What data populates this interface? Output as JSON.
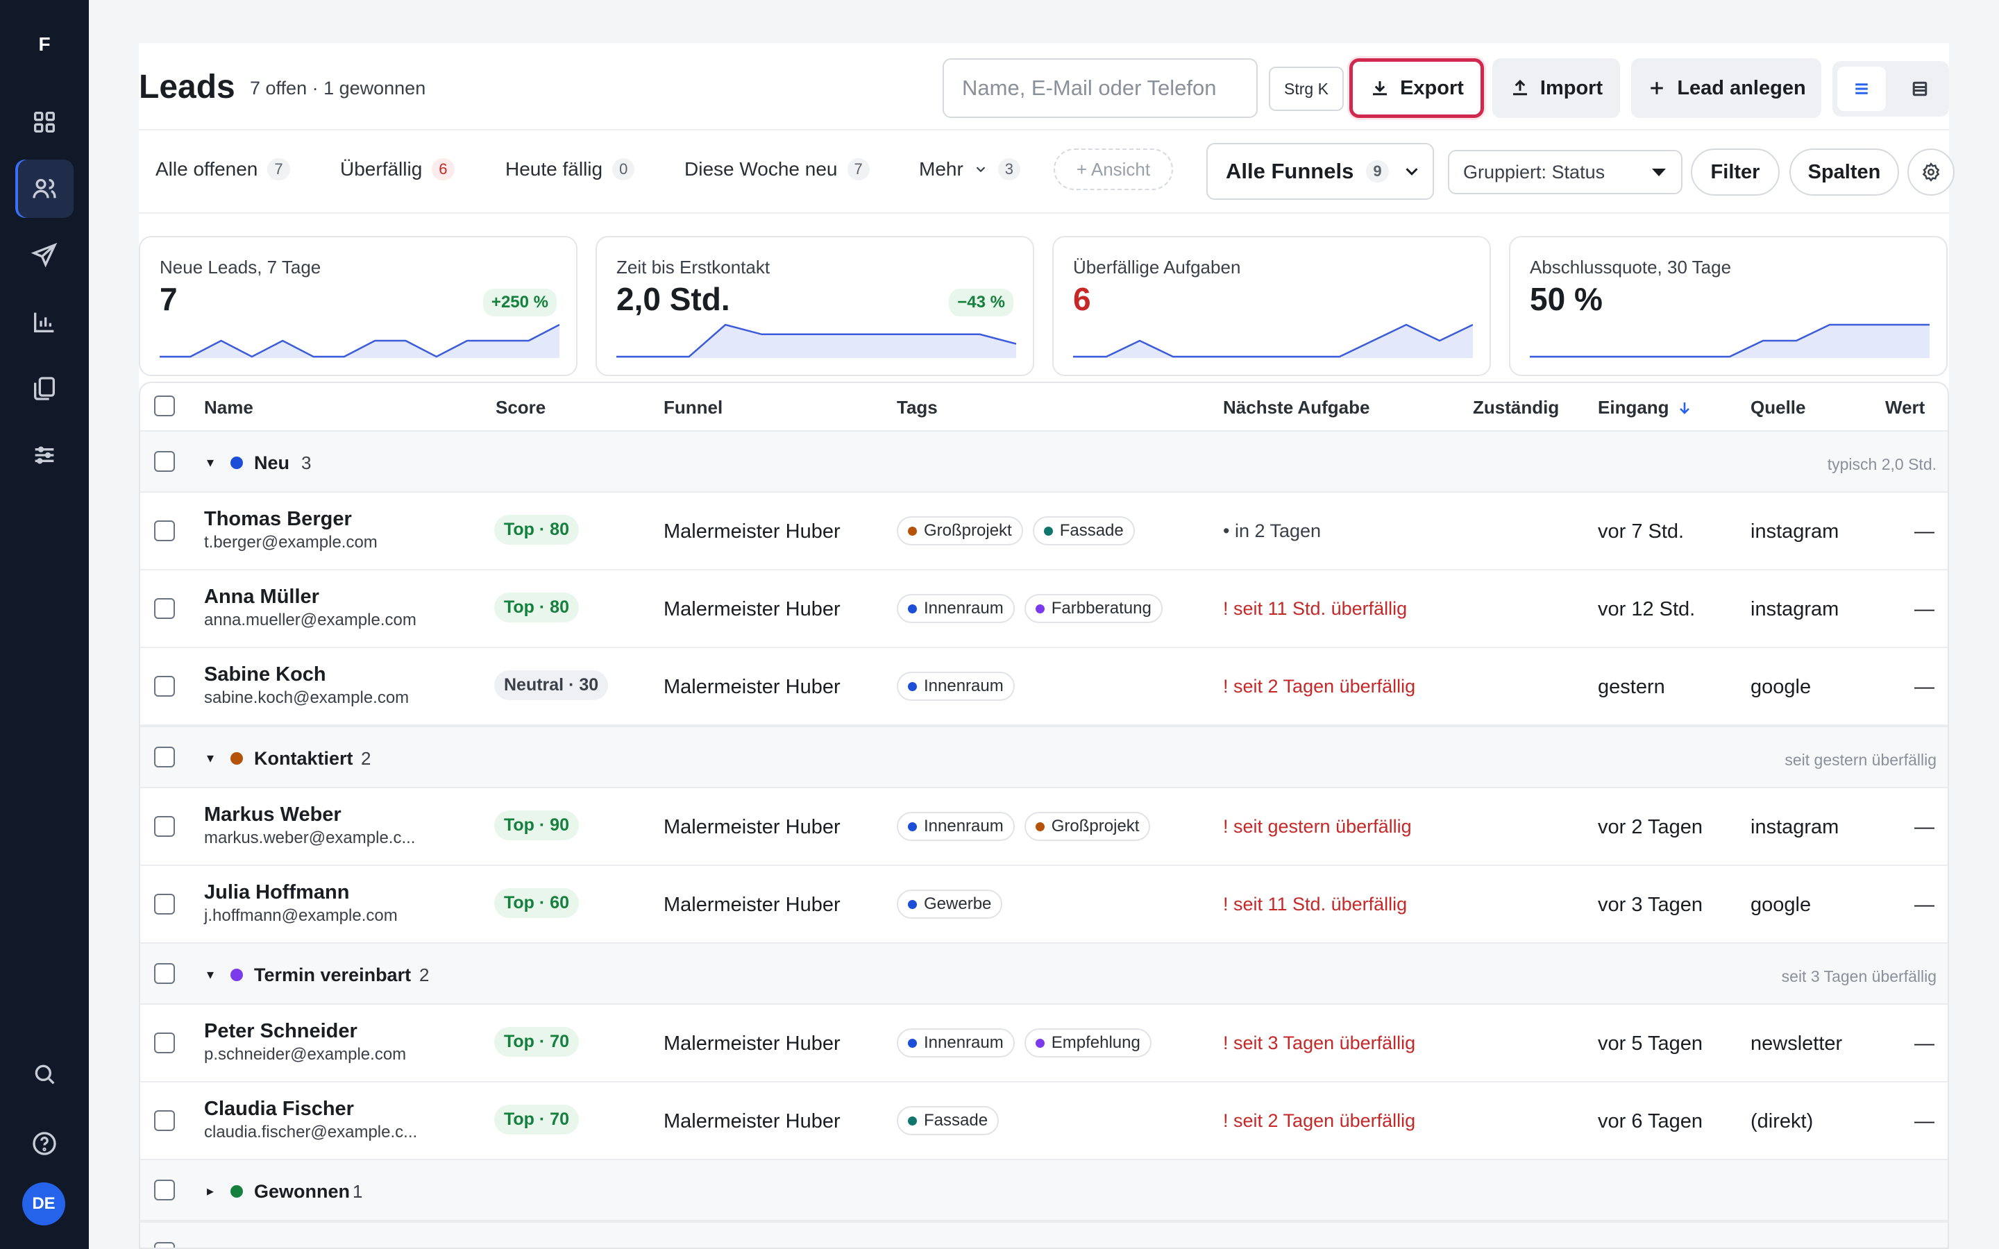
{
  "app": {
    "logo": "F",
    "avatar": "DE"
  },
  "header": {
    "title": "Leads",
    "subtitle": "7 offen · 1 gewonnen",
    "search_placeholder": "Name, E-Mail oder Telefon",
    "shortcut": "Strg K",
    "export": "Export",
    "import": "Import",
    "create": "Lead anlegen"
  },
  "tabs": [
    {
      "label": "Alle offenen",
      "count": "7"
    },
    {
      "label": "Überfällig",
      "count": "6"
    },
    {
      "label": "Heute fällig",
      "count": "0"
    },
    {
      "label": "Diese Woche neu",
      "count": "7"
    },
    {
      "label": "Mehr",
      "count": "3"
    }
  ],
  "toolbar": {
    "add_view": "+ Ansicht",
    "funnels": "Alle Funnels",
    "funnels_count": "9",
    "group": "Gruppiert: Status",
    "filter": "Filter",
    "columns": "Spalten"
  },
  "kpis": [
    {
      "label": "Neue Leads, 7 Tage",
      "value": "7",
      "delta": "+250 %",
      "spark": [
        0,
        0,
        1,
        0,
        1,
        0,
        0,
        1,
        1,
        0,
        1,
        1,
        1,
        2
      ]
    },
    {
      "label": "Zeit bis Erstkontakt",
      "value": "2,0 Std.",
      "delta": "−43 %",
      "spark": [
        0,
        0,
        0,
        1,
        0.7,
        0.7,
        0.7,
        0.7,
        0.7,
        0.7,
        0.7,
        0.4
      ]
    },
    {
      "label": "Überfällige Aufgaben",
      "value": "6",
      "delta": "",
      "spark": [
        0,
        0,
        1,
        0,
        0,
        0,
        0,
        0,
        0,
        1,
        2,
        1,
        2
      ]
    },
    {
      "label": "Abschlussquote, 30 Tage",
      "value": "50 %",
      "delta": "",
      "spark": [
        0,
        0,
        0,
        0,
        0,
        0,
        0,
        1,
        1,
        2,
        2,
        2,
        2
      ]
    }
  ],
  "columns": {
    "name": "Name",
    "score": "Score",
    "funnel": "Funnel",
    "tags": "Tags",
    "task": "Nächste Aufgabe",
    "owner": "Zuständig",
    "eingang": "Eingang",
    "source": "Quelle",
    "value": "Wert"
  },
  "groups": [
    {
      "label": "Neu",
      "count": "3",
      "hint": "typisch 2,0 Std.",
      "color": "#1d4ed8"
    },
    {
      "label": "Kontaktiert",
      "count": "2",
      "hint": "seit gestern überfällig",
      "color": "#b45309"
    },
    {
      "label": "Termin vereinbart",
      "count": "2",
      "hint": "seit 3 Tagen überfällig",
      "color": "#7c3aed"
    },
    {
      "label": "Gewonnen",
      "count": "1",
      "hint": "",
      "color": "#15803d"
    }
  ],
  "rows": [
    {
      "name": "Thomas Berger",
      "email": "t.berger@example.com",
      "score": "Top · 80",
      "funnel": "Malermeister Huber",
      "tags": [
        {
          "t": "Großprojekt",
          "c": "#b45309"
        },
        {
          "t": "Fassade",
          "c": "#0f766e"
        }
      ],
      "task": "• in 2 Tagen",
      "overdue": false,
      "eingang": "vor 7 Std.",
      "source": "instagram",
      "value": "—"
    },
    {
      "name": "Anna Müller",
      "email": "anna.mueller@example.com",
      "score": "Top · 80",
      "funnel": "Malermeister Huber",
      "tags": [
        {
          "t": "Innenraum",
          "c": "#1d4ed8"
        },
        {
          "t": "Farbberatung",
          "c": "#7c3aed"
        }
      ],
      "task": "! seit 11 Std. überfällig",
      "overdue": true,
      "eingang": "vor 12 Std.",
      "source": "instagram",
      "value": "—"
    },
    {
      "name": "Sabine Koch",
      "email": "sabine.koch@example.com",
      "score": "Neutral · 30",
      "funnel": "Malermeister Huber",
      "tags": [
        {
          "t": "Innenraum",
          "c": "#1d4ed8"
        }
      ],
      "task": "! seit 2 Tagen überfällig",
      "overdue": true,
      "eingang": "gestern",
      "source": "google",
      "value": "—"
    },
    {
      "name": "Markus Weber",
      "email": "markus.weber@example.c...",
      "score": "Top · 90",
      "funnel": "Malermeister Huber",
      "tags": [
        {
          "t": "Innenraum",
          "c": "#1d4ed8"
        },
        {
          "t": "Großprojekt",
          "c": "#b45309"
        }
      ],
      "task": "! seit gestern überfällig",
      "overdue": true,
      "eingang": "vor 2 Tagen",
      "source": "instagram",
      "value": "—"
    },
    {
      "name": "Julia Hoffmann",
      "email": "j.hoffmann@example.com",
      "score": "Top · 60",
      "funnel": "Malermeister Huber",
      "tags": [
        {
          "t": "Gewerbe",
          "c": "#1d4ed8"
        }
      ],
      "task": "! seit 11 Std. überfällig",
      "overdue": true,
      "eingang": "vor 3 Tagen",
      "source": "google",
      "value": "—"
    },
    {
      "name": "Peter Schneider",
      "email": "p.schneider@example.com",
      "score": "Top · 70",
      "funnel": "Malermeister Huber",
      "tags": [
        {
          "t": "Innenraum",
          "c": "#1d4ed8"
        },
        {
          "t": "Empfehlung",
          "c": "#7c3aed"
        }
      ],
      "task": "! seit 3 Tagen überfällig",
      "overdue": true,
      "eingang": "vor 5 Tagen",
      "source": "newsletter",
      "value": "—"
    },
    {
      "name": "Claudia Fischer",
      "email": "claudia.fischer@example.c...",
      "score": "Top · 70",
      "funnel": "Malermeister Huber",
      "tags": [
        {
          "t": "Fassade",
          "c": "#0f766e"
        }
      ],
      "task": "! seit 2 Tagen überfällig",
      "overdue": true,
      "eingang": "vor 6 Tagen",
      "source": "(direkt)",
      "value": "—"
    }
  ]
}
